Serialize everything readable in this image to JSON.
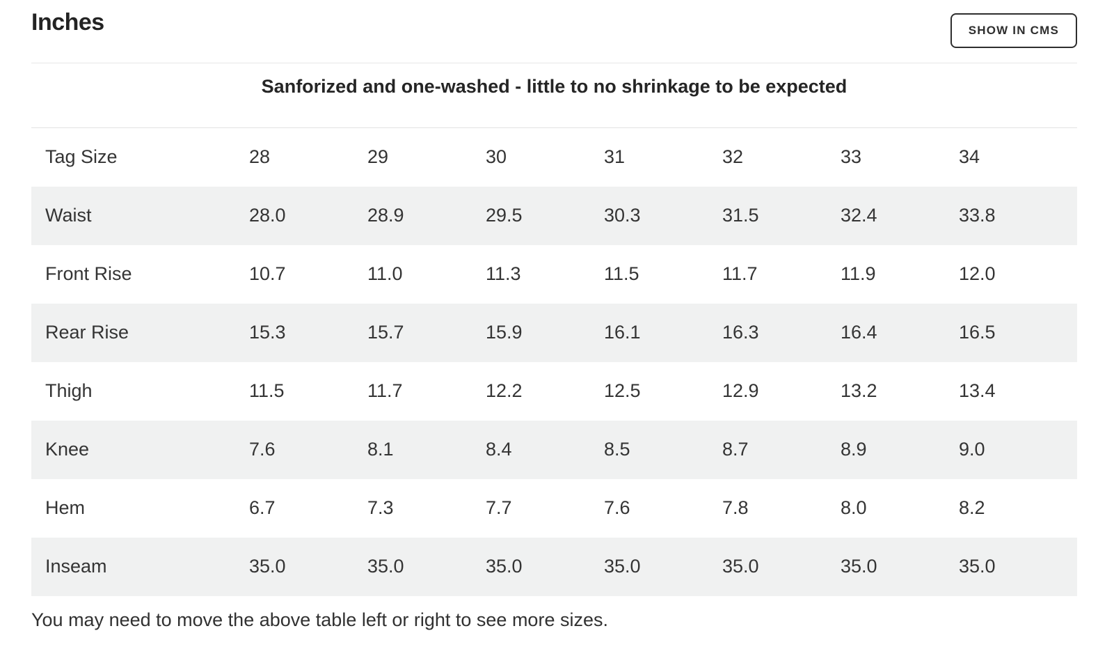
{
  "page": {
    "title": "Inches",
    "cms_button_label": "SHOW IN CMS",
    "subtitle": "Sanforized and one-washed - little to no shrinkage to be expected",
    "footnote": "You may need to move the above table left or right to see more sizes."
  },
  "table": {
    "type": "table",
    "unit": "inches",
    "size_columns": [
      "28",
      "29",
      "30",
      "31",
      "32",
      "33",
      "34"
    ],
    "rows": [
      {
        "label": "Tag Size",
        "values": [
          "28",
          "29",
          "30",
          "31",
          "32",
          "33",
          "34"
        ]
      },
      {
        "label": "Waist",
        "values": [
          "28.0",
          "28.9",
          "29.5",
          "30.3",
          "31.5",
          "32.4",
          "33.8"
        ]
      },
      {
        "label": "Front Rise",
        "values": [
          "10.7",
          "11.0",
          "11.3",
          "11.5",
          "11.7",
          "11.9",
          "12.0"
        ]
      },
      {
        "label": "Rear Rise",
        "values": [
          "15.3",
          "15.7",
          "15.9",
          "16.1",
          "16.3",
          "16.4",
          "16.5"
        ]
      },
      {
        "label": "Thigh",
        "values": [
          "11.5",
          "11.7",
          "12.2",
          "12.5",
          "12.9",
          "13.2",
          "13.4"
        ]
      },
      {
        "label": "Knee",
        "values": [
          "7.6",
          "8.1",
          "8.4",
          "8.5",
          "8.7",
          "8.9",
          "9.0"
        ]
      },
      {
        "label": "Hem",
        "values": [
          "6.7",
          "7.3",
          "7.7",
          "7.6",
          "7.8",
          "8.0",
          "8.2"
        ]
      },
      {
        "label": "Inseam",
        "values": [
          "35.0",
          "35.0",
          "35.0",
          "35.0",
          "35.0",
          "35.0",
          "35.0"
        ]
      }
    ]
  },
  "colors": {
    "row_stripe": "#f0f1f1",
    "divider": "#e6e6e6",
    "table_border": "#e2e2e2",
    "heading_text": "#232323",
    "body_text": "#343434",
    "button_border": "#2e2e2e"
  }
}
